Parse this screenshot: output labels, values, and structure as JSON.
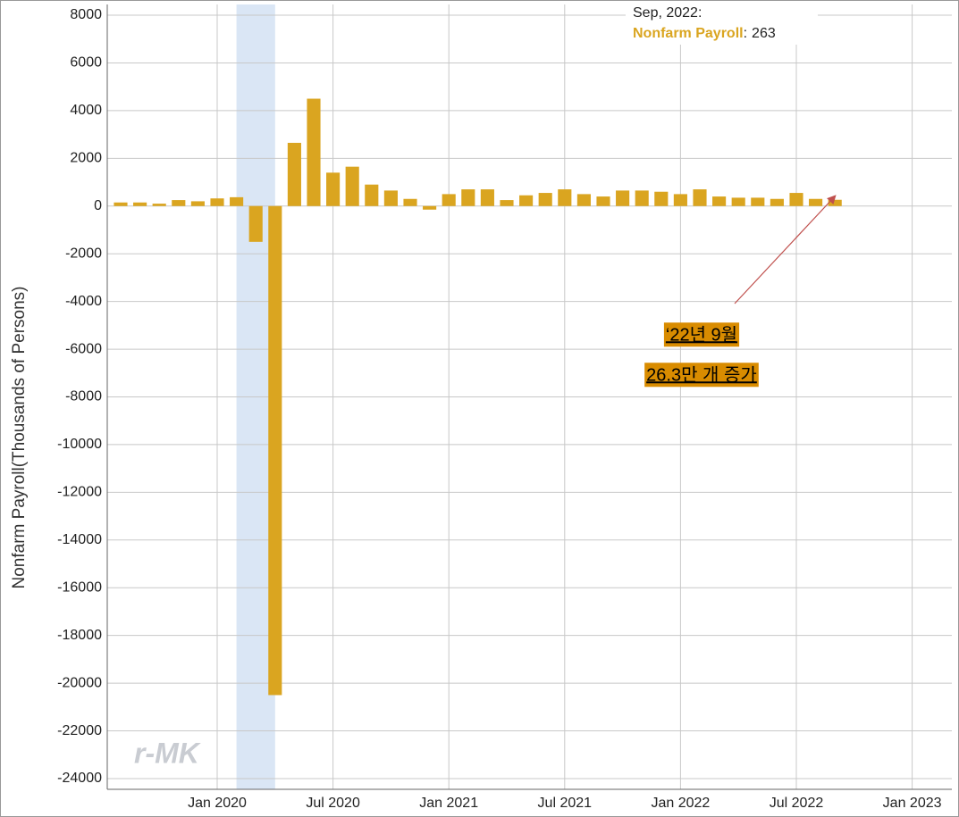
{
  "chart_data": {
    "type": "bar",
    "y_axis_label": "Nonfarm Payroll(Thousands of Persons)",
    "x": [
      "2019-08",
      "2019-09",
      "2019-10",
      "2019-11",
      "2019-12",
      "2020-01",
      "2020-02",
      "2020-03",
      "2020-04",
      "2020-05",
      "2020-06",
      "2020-07",
      "2020-08",
      "2020-09",
      "2020-10",
      "2020-11",
      "2020-12",
      "2021-01",
      "2021-02",
      "2021-03",
      "2021-04",
      "2021-05",
      "2021-06",
      "2021-07",
      "2021-08",
      "2021-09",
      "2021-10",
      "2021-11",
      "2021-12",
      "2022-01",
      "2022-02",
      "2022-03",
      "2022-04",
      "2022-05",
      "2022-06",
      "2022-07",
      "2022-08",
      "2022-09"
    ],
    "series": [
      {
        "name": "Nonfarm Payroll",
        "color": "#daa520",
        "values": [
          150,
          150,
          100,
          250,
          200,
          320,
          370,
          -1500,
          -20500,
          2650,
          4500,
          1400,
          1650,
          900,
          650,
          300,
          -150,
          500,
          700,
          700,
          250,
          450,
          550,
          700,
          500,
          400,
          650,
          650,
          600,
          500,
          700,
          400,
          350,
          350,
          300,
          550,
          300,
          263
        ]
      }
    ],
    "xlim": [
      "2019-07",
      "2023-03"
    ],
    "xticks": [
      {
        "value": "2020-01",
        "label": "Jan 2020"
      },
      {
        "value": "2020-07",
        "label": "Jul 2020"
      },
      {
        "value": "2021-01",
        "label": "Jan 2021"
      },
      {
        "value": "2021-07",
        "label": "Jul 2021"
      },
      {
        "value": "2022-01",
        "label": "Jan 2022"
      },
      {
        "value": "2022-07",
        "label": "Jul 2022"
      },
      {
        "value": "2023-01",
        "label": "Jan 2023"
      }
    ],
    "ylim": [
      -24450,
      8450
    ],
    "yticks": [
      8000,
      6000,
      4000,
      2000,
      0,
      -2000,
      -4000,
      -6000,
      -8000,
      -10000,
      -12000,
      -14000,
      -16000,
      -18000,
      -20000,
      -22000,
      -24000
    ],
    "grid": true,
    "shaded_range": [
      "2020-02",
      "2020-04"
    ],
    "shade_color": "#dae6f5",
    "tooltip": {
      "header": "Sep, 2022:",
      "separator": ":"
    },
    "annotation": {
      "lines": [
        "‘22년 9월",
        "26.3만 개 증가"
      ],
      "background": "#d98c00",
      "arrow_color": "#c0504d"
    },
    "watermark": "r-MK"
  }
}
